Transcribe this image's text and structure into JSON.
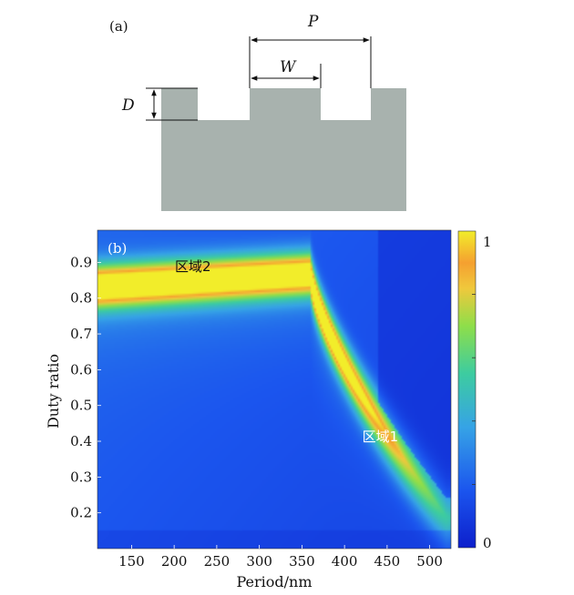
{
  "panel_a": {
    "label": "(a)",
    "dim_period": "P",
    "dim_width": "W",
    "dim_depth": "D",
    "profile_color": "#a8b2ae"
  },
  "chart_data": {
    "type": "heatmap",
    "panel_label": "(b)",
    "xlabel": "Period/nm",
    "ylabel": "Duty ratio",
    "xlim": [
      110,
      525
    ],
    "ylim": [
      0.1,
      0.99
    ],
    "xticks": [
      150,
      200,
      250,
      300,
      350,
      400,
      450,
      500
    ],
    "yticks": [
      0.2,
      0.3,
      0.4,
      0.5,
      0.6,
      0.7,
      0.8,
      0.9
    ],
    "colorbar": {
      "min": 0,
      "max": 1,
      "labels": [
        "1",
        "0"
      ],
      "minor_ticks": [
        0.2,
        0.4,
        0.6,
        0.8
      ]
    },
    "colormap": [
      "#0d1fcc",
      "#1b55ee",
      "#36a3e6",
      "#3dcca0",
      "#8ede4a",
      "#f0c83c",
      "#f5a030",
      "#f2ed2a"
    ],
    "annotations": [
      {
        "text": "区域2",
        "x": 222,
        "y": 0.875,
        "color": "#111111"
      },
      {
        "text": "区域1",
        "x": 442,
        "y": 0.4,
        "color": "#ffffff"
      }
    ]
  }
}
